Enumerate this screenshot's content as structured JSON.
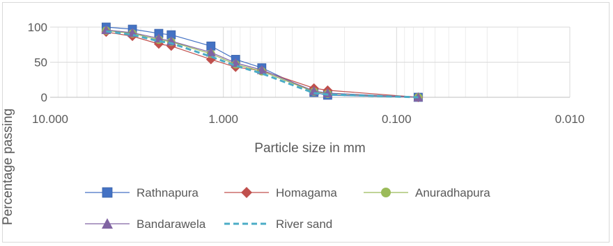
{
  "chart_data": {
    "type": "scatter",
    "xlabel": "Particle size in mm",
    "ylabel": "Percentage passing",
    "x_scale": "log-reversed",
    "xlim": [
      10,
      0.01
    ],
    "ylim": [
      0,
      100
    ],
    "x_ticks": [
      {
        "value": 10,
        "label": "10.000"
      },
      {
        "value": 1,
        "label": "1.000"
      },
      {
        "value": 0.1,
        "label": "0.100"
      },
      {
        "value": 0.01,
        "label": "0.010"
      }
    ],
    "y_ticks": [
      {
        "value": 0,
        "label": "0"
      },
      {
        "value": 50,
        "label": "50"
      },
      {
        "value": 100,
        "label": "100"
      }
    ],
    "grid": "major and minor (log)",
    "legend_position": "bottom",
    "series": [
      {
        "name": "Rathnapura",
        "color": "#4472c4",
        "marker": "square",
        "line": "solid",
        "x": [
          4.75,
          3.35,
          2.36,
          2.0,
          1.18,
          0.85,
          0.6,
          0.3,
          0.25,
          0.075
        ],
        "y": [
          100,
          97,
          91,
          89,
          73,
          54,
          42,
          7,
          3,
          0
        ]
      },
      {
        "name": "Homagama",
        "color": "#c0504d",
        "marker": "diamond",
        "line": "solid",
        "x": [
          4.75,
          3.35,
          2.36,
          2.0,
          1.18,
          0.85,
          0.6,
          0.3,
          0.25,
          0.075
        ],
        "y": [
          93,
          87,
          76,
          73,
          54,
          43,
          38,
          13,
          10,
          0
        ]
      },
      {
        "name": "Anuradhapura",
        "color": "#9bbb59",
        "marker": "circle",
        "line": "solid",
        "x": [
          4.75,
          3.35,
          2.36,
          2.0,
          1.18,
          0.85,
          0.6,
          0.3,
          0.25,
          0.075
        ],
        "y": [
          95,
          91,
          82,
          79,
          62,
          47,
          37,
          8,
          5,
          0
        ]
      },
      {
        "name": "Bandarawela",
        "color": "#8064a2",
        "marker": "triangle",
        "line": "solid",
        "x": [
          4.75,
          3.35,
          2.36,
          2.0,
          1.18,
          0.85,
          0.6,
          0.3,
          0.25,
          0.075
        ],
        "y": [
          96,
          92,
          84,
          80,
          64,
          49,
          39,
          9,
          6,
          0
        ]
      },
      {
        "name": "River sand",
        "color": "#4bacc6",
        "marker": "none",
        "line": "dashed",
        "x": [
          4.75,
          3.35,
          2.36,
          2.0,
          1.18,
          0.85,
          0.6,
          0.3,
          0.25,
          0.075
        ],
        "y": [
          94,
          89,
          80,
          77,
          58,
          45,
          34,
          6,
          4,
          0
        ]
      }
    ]
  }
}
